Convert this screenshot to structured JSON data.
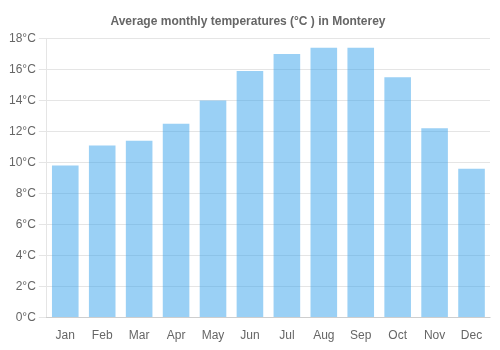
{
  "chart_data": {
    "type": "bar",
    "title": "Average monthly temperatures (°C ) in Monterey",
    "categories": [
      "Jan",
      "Feb",
      "Mar",
      "Apr",
      "May",
      "Jun",
      "Jul",
      "Aug",
      "Sep",
      "Oct",
      "Nov",
      "Dec"
    ],
    "values": [
      9.8,
      11.1,
      11.4,
      12.5,
      14.0,
      15.9,
      17.0,
      17.4,
      17.4,
      15.5,
      12.2,
      9.6
    ],
    "ylim": [
      0,
      18
    ],
    "yticks": [
      {
        "value": 0,
        "label": "0°C"
      },
      {
        "value": 2,
        "label": "2°C"
      },
      {
        "value": 4,
        "label": "4°C"
      },
      {
        "value": 6,
        "label": "6°C"
      },
      {
        "value": 8,
        "label": "8°C"
      },
      {
        "value": 10,
        "label": "10°C"
      },
      {
        "value": 12,
        "label": "12°C"
      },
      {
        "value": 14,
        "label": "14°C"
      },
      {
        "value": 16,
        "label": "16°C"
      },
      {
        "value": 18,
        "label": "18°C"
      }
    ],
    "grid": true
  }
}
